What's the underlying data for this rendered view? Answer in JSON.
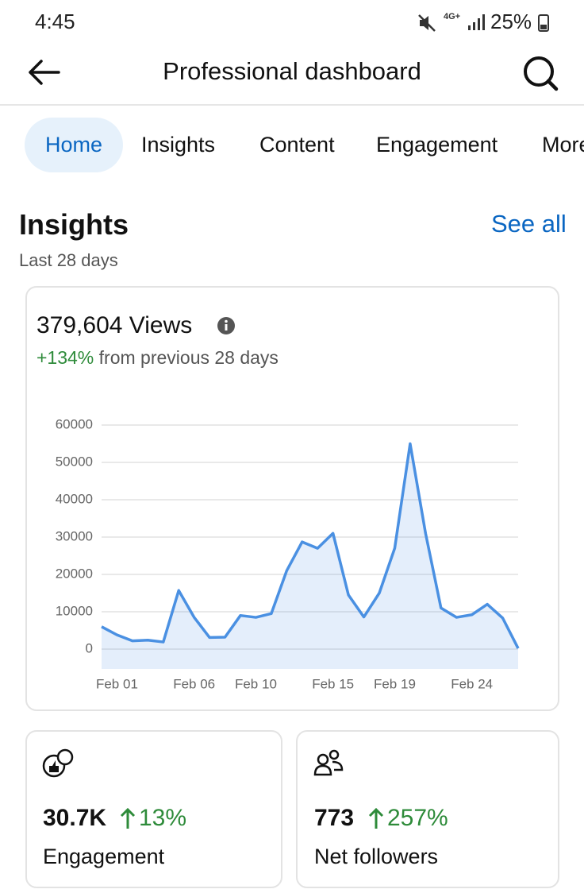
{
  "status": {
    "time": "4:45",
    "network": "4G+",
    "battery": "25%"
  },
  "header": {
    "title": "Professional dashboard"
  },
  "tabs": [
    "Home",
    "Insights",
    "Content",
    "Engagement",
    "More"
  ],
  "section": {
    "title": "Insights",
    "subtitle": "Last 28 days",
    "link": "See all"
  },
  "card": {
    "views": "379,604 Views",
    "change": "+134%",
    "change_text": "from previous 28 days"
  },
  "chart_data": {
    "type": "area",
    "categories": [
      null,
      "Feb 01",
      null,
      null,
      null,
      null,
      "Feb 06",
      null,
      null,
      null,
      "Feb 10",
      null,
      null,
      null,
      null,
      "Feb 15",
      null,
      null,
      null,
      "Feb 19",
      null,
      null,
      null,
      null,
      "Feb 24",
      null,
      null,
      null
    ],
    "series": [
      {
        "name": "Views",
        "color": "#4a90e2",
        "values": [
          6000,
          3800,
          2200,
          2400,
          1900,
          15700,
          8500,
          3100,
          3200,
          9000,
          8500,
          9500,
          21000,
          28700,
          27000,
          31000,
          14500,
          8600,
          15000,
          27000,
          55000,
          31000,
          11000,
          8500,
          9200,
          12000,
          8300,
          200
        ]
      }
    ],
    "ylim": [
      0,
      60000
    ],
    "yticks": [
      0,
      10000,
      20000,
      30000,
      40000,
      50000,
      60000
    ],
    "grid": true
  },
  "stats": [
    {
      "value": "30.7K",
      "change": "13%",
      "label": "Engagement"
    },
    {
      "value": "773",
      "change": "257%",
      "label": "Net followers"
    }
  ]
}
